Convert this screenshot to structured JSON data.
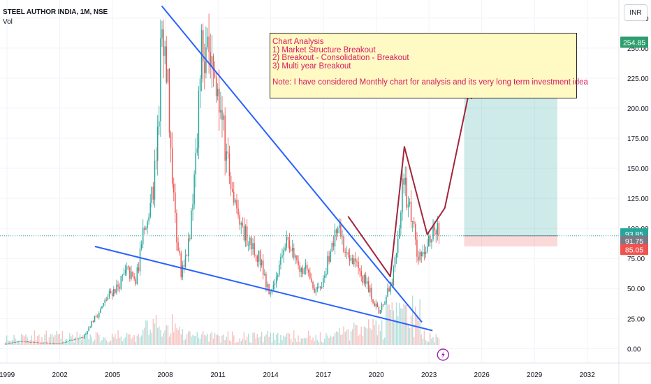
{
  "header": {
    "title": "STEEL AUTHOR INDIA, 1M, NSE",
    "volume_label": "Vol"
  },
  "currency_button": "INR",
  "note": {
    "lines": [
      "Chart Analysis",
      "1) Market Structure Breakout",
      "2) Breakout - Consolidation - Breakout",
      "3) Multi year Breakout",
      "",
      "Note: I have considered Monthly chart for analysis and its very long term investment idea"
    ]
  },
  "price_badges": [
    {
      "label": "254.85",
      "value": 254.85,
      "color": "#2e9e6e"
    },
    {
      "label": "93.85",
      "value": 95.5,
      "color": "#26a69a"
    },
    {
      "label": "91.75",
      "value": 89.5,
      "color": "#787b86"
    },
    {
      "label": "85.05",
      "value": 82.5,
      "color": "#ef5350"
    }
  ],
  "chart_data": {
    "type": "candlestick",
    "x_ticks": [
      "1999",
      "2002",
      "2005",
      "2008",
      "2011",
      "2014",
      "2017",
      "2020",
      "2023",
      "2026",
      "2029",
      "2032"
    ],
    "y_ticks": [
      "0.00",
      "25.00",
      "50.00",
      "75.00",
      "100.00",
      "125.00",
      "150.00",
      "175.00",
      "200.00",
      "225.00",
      "250.00",
      "275.00"
    ],
    "ylim": [
      -12,
      290
    ],
    "xlim": [
      1998.6,
      2033.8
    ],
    "price_path": [
      [
        1998.9,
        4
      ],
      [
        2000.0,
        6
      ],
      [
        2001.0,
        5
      ],
      [
        2002.0,
        4
      ],
      [
        2002.8,
        7
      ],
      [
        2003.4,
        9
      ],
      [
        2003.9,
        22
      ],
      [
        2004.3,
        30
      ],
      [
        2004.9,
        45
      ],
      [
        2005.4,
        52
      ],
      [
        2005.9,
        65
      ],
      [
        2006.4,
        55
      ],
      [
        2006.9,
        100
      ],
      [
        2007.4,
        130
      ],
      [
        2007.7,
        190
      ],
      [
        2007.9,
        280
      ],
      [
        2008.2,
        230
      ],
      [
        2008.6,
        110
      ],
      [
        2009.0,
        62
      ],
      [
        2009.4,
        85
      ],
      [
        2009.8,
        150
      ],
      [
        2010.2,
        260
      ],
      [
        2010.6,
        230
      ],
      [
        2011.0,
        215
      ],
      [
        2011.4,
        180
      ],
      [
        2011.8,
        140
      ],
      [
        2012.2,
        115
      ],
      [
        2012.6,
        95
      ],
      [
        2013.0,
        85
      ],
      [
        2013.5,
        75
      ],
      [
        2014.0,
        45
      ],
      [
        2014.4,
        60
      ],
      [
        2014.9,
        90
      ],
      [
        2015.3,
        82
      ],
      [
        2015.8,
        68
      ],
      [
        2016.3,
        65
      ],
      [
        2016.6,
        45
      ],
      [
        2017.0,
        55
      ],
      [
        2017.5,
        80
      ],
      [
        2017.9,
        100
      ],
      [
        2018.3,
        85
      ],
      [
        2018.8,
        75
      ],
      [
        2019.3,
        60
      ],
      [
        2019.8,
        45
      ],
      [
        2020.2,
        30
      ],
      [
        2020.6,
        42
      ],
      [
        2021.0,
        55
      ],
      [
        2021.4,
        100
      ],
      [
        2021.6,
        145
      ],
      [
        2021.9,
        120
      ],
      [
        2022.2,
        100
      ],
      [
        2022.5,
        75
      ],
      [
        2022.9,
        88
      ],
      [
        2023.3,
        94
      ],
      [
        2023.6,
        98
      ]
    ],
    "annotations": {
      "falling_wedge_upper": [
        [
          2007.8,
          285
        ],
        [
          2022.6,
          22
        ]
      ],
      "falling_wedge_lower": [
        [
          2004.0,
          85
        ],
        [
          2023.2,
          15
        ]
      ],
      "projection_path": [
        [
          2018.4,
          110
        ],
        [
          2020.8,
          60
        ],
        [
          2021.6,
          168
        ],
        [
          2022.9,
          95
        ],
        [
          2023.9,
          117
        ],
        [
          2025.3,
          215
        ]
      ],
      "long_position": {
        "x_start": 2025.0,
        "x_end": 2030.3,
        "entry": 93.85,
        "target": 254.85,
        "stop": 85.05
      }
    }
  }
}
